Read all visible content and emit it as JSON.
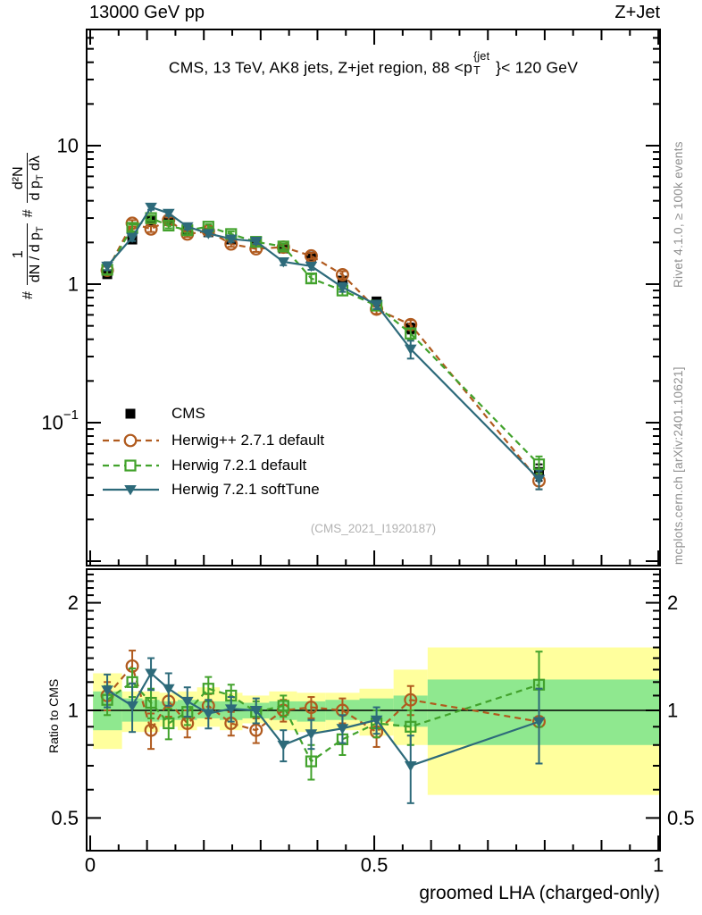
{
  "header": {
    "left": "13000 GeV pp",
    "right": "Z+Jet"
  },
  "panel_title": {
    "pre": "CMS, 13 TeV, AK8 jets, Z+jet region, 88 <p",
    "sup": "{jet",
    "sub": "T",
    "post": "}< 120 GeV"
  },
  "watermarks": {
    "rivet": "Rivet 4.1.0, ≥ 100k events",
    "mcplots": "mcplots.cern.ch [arXiv:2401.10621]",
    "analysis": "(CMS_2021_I1920187)"
  },
  "ylabel_main": {
    "hash1": "#",
    "frac1_num": "1",
    "frac1_den_main": "dN / d p",
    "frac1_den_sub": "T",
    "hash2": "#",
    "frac2_num": "d²N",
    "frac2_den_a": "d p",
    "frac2_den_a_sub": "T",
    "frac2_den_b": " dλ"
  },
  "ylabel_ratio": "Ratio to CMS",
  "xlabel": "groomed LHA (charged-only)",
  "colors": {
    "cms": "#000000",
    "herwigpp": "#b05a1e",
    "herwig7_default": "#42a22c",
    "herwig7_softtune": "#2d6a7a",
    "band_yellow": "#ffff9d",
    "band_green": "#8fe88f",
    "axis": "#000000",
    "watermark_gray": "#909090"
  },
  "legend": [
    {
      "label": "CMS",
      "marker": "square-filled",
      "line": "none",
      "color": "#000000"
    },
    {
      "label": "Herwig++ 2.7.1 default",
      "marker": "circle-open",
      "line": "dashed",
      "color": "#b05a1e"
    },
    {
      "label": "Herwig 7.2.1 default",
      "marker": "square-open",
      "line": "dashed",
      "color": "#42a22c"
    },
    {
      "label": "Herwig 7.2.1 softTune",
      "marker": "triangle-down-filled",
      "line": "solid",
      "color": "#2d6a7a"
    }
  ],
  "chart_data": [
    {
      "type": "line",
      "panel": "main",
      "title": "CMS, 13 TeV, AK8 jets, Z+jet region, 88 <pT{jet}< 120 GeV",
      "ylabel": "# 1/(dN/dpT) # d²N/(dpT dλ)",
      "yscale": "log",
      "ylim": [
        0.01,
        69
      ],
      "xlim": [
        -0.0063,
        1.003
      ],
      "yticks": [
        {
          "v": 10,
          "label": "10"
        },
        {
          "v": 1,
          "label": "1"
        },
        {
          "v": 0.1,
          "label": "10",
          "exp": "−1"
        }
      ],
      "x": [
        0.03,
        0.074,
        0.107,
        0.138,
        0.171,
        0.208,
        0.248,
        0.292,
        0.34,
        0.389,
        0.444,
        0.504,
        0.564,
        0.79
      ],
      "series": [
        {
          "name": "CMS",
          "marker": "square-filled",
          "line": "none",
          "color": "#000000",
          "values": [
            1.18,
            2.1,
            2.88,
            2.86,
            2.45,
            2.37,
            2.1,
            2.04,
            1.81,
            1.58,
            1.06,
            0.75,
            0.48,
            0.044
          ],
          "yerr": [
            0.07,
            0.1,
            0.12,
            0.12,
            0.1,
            0.1,
            0.09,
            0.09,
            0.08,
            0.08,
            0.06,
            0.05,
            0.04,
            0.006
          ]
        },
        {
          "name": "Herwig++ 2.7.1 default",
          "marker": "circle-open",
          "line": "dashed",
          "color": "#b05a1e",
          "values": [
            1.26,
            2.75,
            2.5,
            2.9,
            2.3,
            2.42,
            1.95,
            1.8,
            1.85,
            1.6,
            1.17,
            0.66,
            0.51,
            0.038
          ],
          "yerr": [
            0.08,
            0.15,
            0.12,
            0.13,
            0.11,
            0.11,
            0.09,
            0.09,
            0.09,
            0.08,
            0.07,
            0.05,
            0.04,
            0.005
          ]
        },
        {
          "name": "Herwig 7.2.1 default",
          "marker": "square-open",
          "line": "dashed",
          "color": "#42a22c",
          "values": [
            1.27,
            2.55,
            3.0,
            2.65,
            2.45,
            2.6,
            2.3,
            2.02,
            1.87,
            1.1,
            0.9,
            0.7,
            0.44,
            0.05
          ],
          "yerr": [
            0.09,
            0.14,
            0.13,
            0.12,
            0.11,
            0.11,
            0.1,
            0.09,
            0.09,
            0.08,
            0.07,
            0.05,
            0.04,
            0.007
          ]
        },
        {
          "name": "Herwig 7.2.1 softTune",
          "marker": "triangle-down-filled",
          "line": "solid",
          "color": "#2d6a7a",
          "values": [
            1.35,
            2.18,
            3.6,
            3.25,
            2.6,
            2.32,
            2.12,
            2.04,
            1.45,
            1.35,
            0.95,
            0.71,
            0.34,
            0.039
          ],
          "yerr": [
            0.09,
            0.13,
            0.15,
            0.14,
            0.12,
            0.11,
            0.1,
            0.09,
            0.08,
            0.08,
            0.07,
            0.05,
            0.05,
            0.006
          ]
        }
      ]
    },
    {
      "type": "line",
      "panel": "ratio",
      "ylabel": "Ratio to CMS",
      "yscale": "log",
      "ylim": [
        0.405,
        2.5
      ],
      "reference": 1.0,
      "yticks": [
        {
          "v": 2,
          "label": "2"
        },
        {
          "v": 1,
          "label": "1"
        },
        {
          "v": 0.5,
          "label": "0.5"
        }
      ],
      "xticks": [
        {
          "v": 0,
          "label": "0"
        },
        {
          "v": 0.5,
          "label": "0.5"
        },
        {
          "v": 1,
          "label": "1"
        }
      ],
      "x": [
        0.03,
        0.074,
        0.107,
        0.138,
        0.171,
        0.208,
        0.248,
        0.292,
        0.34,
        0.389,
        0.444,
        0.504,
        0.564,
        0.79
      ],
      "bin_edges": [
        0.005,
        0.056,
        0.092,
        0.122,
        0.154,
        0.188,
        0.228,
        0.268,
        0.315,
        0.364,
        0.414,
        0.474,
        0.534,
        0.594,
        1.003
      ],
      "bands": {
        "yellow_lo": [
          0.78,
          0.87,
          0.87,
          0.9,
          0.88,
          0.9,
          0.88,
          0.92,
          0.88,
          0.87,
          0.88,
          0.85,
          0.8,
          0.58
        ],
        "yellow_hi": [
          1.27,
          1.13,
          1.13,
          1.12,
          1.13,
          1.16,
          1.12,
          1.1,
          1.13,
          1.12,
          1.12,
          1.15,
          1.3,
          1.5
        ],
        "green_lo": [
          0.88,
          0.93,
          0.93,
          0.94,
          0.94,
          0.95,
          0.94,
          0.95,
          0.94,
          0.93,
          0.94,
          0.93,
          0.9,
          0.8
        ],
        "green_hi": [
          1.13,
          1.08,
          1.07,
          1.06,
          1.07,
          1.06,
          1.06,
          1.05,
          1.06,
          1.06,
          1.07,
          1.08,
          1.1,
          1.22
        ]
      },
      "series": [
        {
          "name": "Herwig++ 2.7.1 default",
          "marker": "circle-open",
          "line": "dashed",
          "color": "#b05a1e",
          "values": [
            1.1,
            1.33,
            0.88,
            1.06,
            0.92,
            1.03,
            0.92,
            0.88,
            1.0,
            1.02,
            1.0,
            0.87,
            1.07,
            0.93
          ],
          "yerr": [
            0.1,
            0.14,
            0.1,
            0.1,
            0.08,
            0.08,
            0.07,
            0.07,
            0.07,
            0.07,
            0.08,
            0.08,
            0.1,
            0.22
          ]
        },
        {
          "name": "Herwig 7.2.1 default",
          "marker": "square-open",
          "line": "dashed",
          "color": "#42a22c",
          "values": [
            1.07,
            1.2,
            1.05,
            0.92,
            0.99,
            1.15,
            1.1,
            0.99,
            1.03,
            0.72,
            0.83,
            0.92,
            0.9,
            1.18
          ],
          "yerr": [
            0.1,
            0.11,
            0.1,
            0.09,
            0.08,
            0.09,
            0.08,
            0.07,
            0.07,
            0.08,
            0.08,
            0.08,
            0.1,
            0.28
          ]
        },
        {
          "name": "Herwig 7.2.1 softTune",
          "marker": "triangle-down-filled",
          "line": "solid",
          "color": "#2d6a7a",
          "values": [
            1.14,
            1.03,
            1.27,
            1.15,
            1.06,
            0.98,
            1.01,
            1.0,
            0.8,
            0.86,
            0.89,
            0.94,
            0.7,
            0.93
          ],
          "yerr": [
            0.12,
            0.16,
            0.13,
            0.12,
            0.1,
            0.09,
            0.08,
            0.08,
            0.08,
            0.08,
            0.08,
            0.08,
            0.15,
            0.22
          ]
        }
      ]
    }
  ]
}
